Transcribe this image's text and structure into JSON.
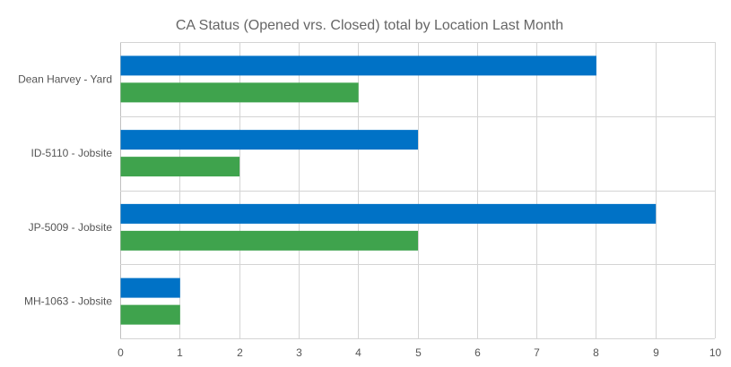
{
  "chart_data": {
    "type": "bar",
    "orientation": "horizontal",
    "title": "CA Status (Opened vrs. Closed) total by Location Last Month",
    "categories": [
      "Dean Harvey - Yard",
      "ID-5110 - Jobsite",
      "JP-5009 - Jobsite",
      "MH-1063 - Jobsite"
    ],
    "series": [
      {
        "name": "Opened",
        "color": "#0072c6",
        "values": [
          8,
          5,
          9,
          1
        ]
      },
      {
        "name": "Closed",
        "color": "#3fa34d",
        "values": [
          4,
          2,
          5,
          1
        ]
      }
    ],
    "xlim": [
      0,
      10
    ],
    "xticks": [
      "0",
      "1",
      "2",
      "3",
      "4",
      "5",
      "6",
      "7",
      "8",
      "9",
      "10"
    ],
    "grid": true,
    "legend": "none"
  }
}
